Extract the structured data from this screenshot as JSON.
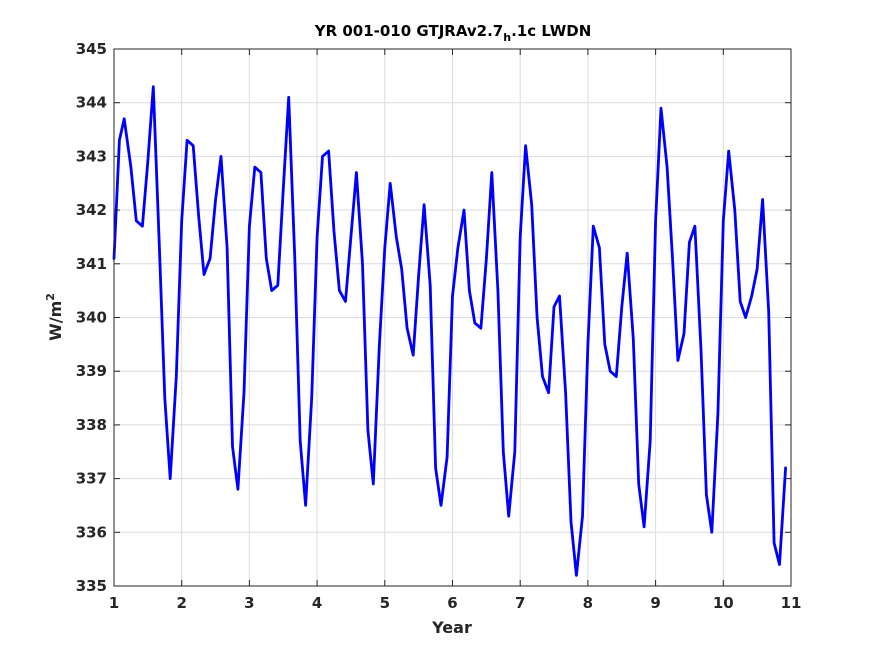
{
  "chart_data": {
    "type": "line",
    "title": "YR 001-010 GTJRAv2.7",
    "title_subscript": "h",
    "title_suffix": ".1c LWDN",
    "xlabel": "Year",
    "ylabel": "W/m",
    "ylabel_superscript": "2",
    "xlim": [
      1,
      11
    ],
    "ylim": [
      335,
      345
    ],
    "xticks": [
      "1",
      "2",
      "3",
      "4",
      "5",
      "6",
      "7",
      "8",
      "9",
      "10",
      "11"
    ],
    "yticks": [
      "335",
      "336",
      "337",
      "338",
      "339",
      "340",
      "341",
      "342",
      "343",
      "344",
      "345"
    ],
    "grid": true,
    "series": [
      {
        "color": "#0000ff",
        "x": [
          1.0,
          1.08,
          1.15,
          1.25,
          1.33,
          1.42,
          1.5,
          1.58,
          1.67,
          1.75,
          1.83,
          1.92,
          2.0,
          2.08,
          2.17,
          2.25,
          2.33,
          2.42,
          2.5,
          2.58,
          2.67,
          2.75,
          2.83,
          2.92,
          3.0,
          3.08,
          3.17,
          3.25,
          3.33,
          3.42,
          3.5,
          3.58,
          3.67,
          3.75,
          3.83,
          3.92,
          4.0,
          4.08,
          4.17,
          4.25,
          4.33,
          4.42,
          4.5,
          4.58,
          4.67,
          4.75,
          4.83,
          4.92,
          5.0,
          5.08,
          5.17,
          5.25,
          5.33,
          5.42,
          5.5,
          5.58,
          5.67,
          5.75,
          5.83,
          5.92,
          6.0,
          6.08,
          6.17,
          6.25,
          6.33,
          6.42,
          6.5,
          6.58,
          6.67,
          6.75,
          6.83,
          6.92,
          7.0,
          7.08,
          7.17,
          7.25,
          7.33,
          7.42,
          7.5,
          7.58,
          7.67,
          7.75,
          7.83,
          7.92,
          8.0,
          8.08,
          8.17,
          8.25,
          8.33,
          8.42,
          8.5,
          8.58,
          8.67,
          8.75,
          8.83,
          8.92,
          9.0,
          9.08,
          9.17,
          9.25,
          9.33,
          9.42,
          9.5,
          9.58,
          9.67,
          9.75,
          9.83,
          9.92,
          10.0,
          10.08,
          10.17,
          10.25,
          10.33,
          10.42,
          10.5,
          10.58,
          10.67,
          10.75,
          10.83,
          10.92
        ],
        "y": [
          341.1,
          343.3,
          343.7,
          342.8,
          341.8,
          341.7,
          342.9,
          344.3,
          341.3,
          338.5,
          337.0,
          338.9,
          341.8,
          343.3,
          343.2,
          341.9,
          340.8,
          341.1,
          342.2,
          343.0,
          341.3,
          337.6,
          336.8,
          338.6,
          341.7,
          342.8,
          342.7,
          341.1,
          340.5,
          340.6,
          342.4,
          344.1,
          341.1,
          337.7,
          336.5,
          338.5,
          341.5,
          343.0,
          343.1,
          341.6,
          340.5,
          340.3,
          341.5,
          342.7,
          341.0,
          337.9,
          336.9,
          339.5,
          341.3,
          342.5,
          341.5,
          340.9,
          339.8,
          339.3,
          340.8,
          342.1,
          340.6,
          337.2,
          336.5,
          337.4,
          340.4,
          341.3,
          342.0,
          340.5,
          339.9,
          339.8,
          341.1,
          342.7,
          340.5,
          337.5,
          336.3,
          337.5,
          341.5,
          343.2,
          342.1,
          340.0,
          338.9,
          338.6,
          340.2,
          340.4,
          338.6,
          336.2,
          335.2,
          336.3,
          339.5,
          341.7,
          341.3,
          339.5,
          339.0,
          338.9,
          340.2,
          341.2,
          339.6,
          336.9,
          336.1,
          337.7,
          341.8,
          343.9,
          342.8,
          341.1,
          339.2,
          339.7,
          341.4,
          341.7,
          339.4,
          336.7,
          336.0,
          338.2,
          341.8,
          343.1,
          342.0,
          340.3,
          340.0,
          340.4,
          340.9,
          342.2,
          340.1,
          335.8,
          335.4,
          337.2
        ]
      }
    ]
  }
}
